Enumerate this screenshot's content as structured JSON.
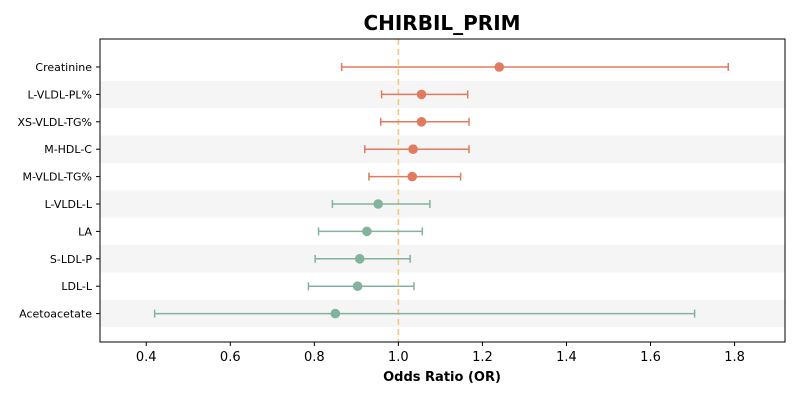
{
  "chart_data": {
    "type": "forest",
    "title": "CHIRBIL_PRIM",
    "xlabel": "Odds Ratio (OR)",
    "xlim": [
      0.29,
      1.92
    ],
    "xticks": [
      0.4,
      0.6,
      0.8,
      1.0,
      1.2,
      1.4,
      1.6,
      1.8
    ],
    "xtick_labels": [
      "0.4",
      "0.6",
      "0.8",
      "1.0",
      "1.2",
      "1.4",
      "1.6",
      "1.8"
    ],
    "reference_line": 1.0,
    "colors": {
      "positive": "#e07b5f",
      "negative": "#82b39c",
      "reference": "#f5c77e",
      "band": "#f5f5f5"
    },
    "rows": [
      {
        "label": "Creatinine",
        "or": 1.24,
        "lower": 0.865,
        "upper": 1.785,
        "direction": "positive"
      },
      {
        "label": "L-VLDL-PL%",
        "or": 1.055,
        "lower": 0.96,
        "upper": 1.165,
        "direction": "positive"
      },
      {
        "label": "XS-VLDL-TG%",
        "or": 1.055,
        "lower": 0.958,
        "upper": 1.168,
        "direction": "positive"
      },
      {
        "label": "M-HDL-C",
        "or": 1.035,
        "lower": 0.92,
        "upper": 1.168,
        "direction": "positive"
      },
      {
        "label": "M-VLDL-TG%",
        "or": 1.033,
        "lower": 0.93,
        "upper": 1.148,
        "direction": "positive"
      },
      {
        "label": "L-VLDL-L",
        "or": 0.952,
        "lower": 0.843,
        "upper": 1.075,
        "direction": "negative"
      },
      {
        "label": "LA",
        "or": 0.925,
        "lower": 0.81,
        "upper": 1.057,
        "direction": "negative"
      },
      {
        "label": "S-LDL-P",
        "or": 0.908,
        "lower": 0.802,
        "upper": 1.028,
        "direction": "negative"
      },
      {
        "label": "LDL-L",
        "or": 0.903,
        "lower": 0.786,
        "upper": 1.037,
        "direction": "negative"
      },
      {
        "label": "Acetoacetate",
        "or": 0.85,
        "lower": 0.42,
        "upper": 1.705,
        "direction": "negative"
      }
    ]
  }
}
